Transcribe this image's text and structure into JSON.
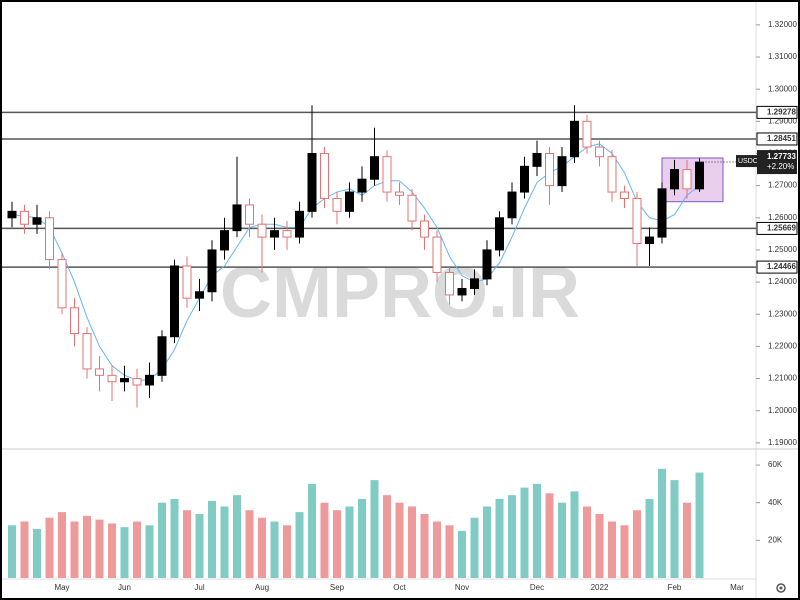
{
  "chart_data": {
    "type": "candlestick",
    "symbol": "USDCAD",
    "watermark": "CMPRO.IR",
    "categories": [
      null,
      null,
      null,
      null,
      "May",
      null,
      null,
      null,
      null,
      "Jun",
      null,
      null,
      null,
      null,
      null,
      "Jul",
      null,
      null,
      null,
      null,
      "Aug",
      null,
      null,
      null,
      null,
      null,
      "Sep",
      null,
      null,
      null,
      null,
      "Oct",
      null,
      null,
      null,
      null,
      "Nov",
      null,
      null,
      null,
      null,
      null,
      "Dec",
      null,
      null,
      null,
      null,
      "2022",
      null,
      null,
      null,
      null,
      null,
      "Feb",
      null,
      null,
      null,
      null,
      "Mar",
      null,
      null
    ],
    "open": [
      1.26,
      1.262,
      1.258,
      1.26,
      1.247,
      1.232,
      1.224,
      1.213,
      1.211,
      1.209,
      1.21,
      1.208,
      1.211,
      1.223,
      1.245,
      1.235,
      1.237,
      1.25,
      1.256,
      1.264,
      1.258,
      1.254,
      1.256,
      1.254,
      1.262,
      1.28,
      1.266,
      1.262,
      1.268,
      1.272,
      1.279,
      1.268,
      1.267,
      1.259,
      1.254,
      1.243,
      1.236,
      1.238,
      1.241,
      1.25,
      1.26,
      1.268,
      1.276,
      1.28,
      1.27,
      1.279,
      1.29,
      1.282,
      1.279,
      1.268,
      1.266,
      1.252,
      1.254,
      1.269,
      1.275,
      1.269,
      null,
      null,
      null,
      null,
      null
    ],
    "high": [
      1.265,
      1.264,
      1.264,
      1.262,
      1.249,
      1.235,
      1.226,
      1.217,
      1.214,
      1.214,
      1.213,
      1.215,
      1.225,
      1.247,
      1.248,
      1.241,
      1.253,
      1.26,
      1.279,
      1.266,
      1.261,
      1.26,
      1.259,
      1.265,
      1.295,
      1.282,
      1.268,
      1.271,
      1.276,
      1.288,
      1.281,
      1.271,
      1.269,
      1.261,
      1.256,
      1.245,
      1.241,
      1.244,
      1.253,
      1.262,
      1.271,
      1.279,
      1.284,
      1.282,
      1.282,
      1.295,
      1.292,
      1.284,
      1.281,
      1.27,
      1.268,
      1.257,
      1.271,
      1.278,
      1.278,
      1.2785,
      null,
      null,
      null,
      null,
      null
    ],
    "low": [
      1.257,
      1.255,
      1.255,
      1.244,
      1.23,
      1.22,
      1.21,
      1.206,
      1.203,
      1.206,
      1.201,
      1.204,
      1.209,
      1.221,
      1.232,
      1.231,
      1.234,
      1.247,
      1.254,
      1.254,
      1.243,
      1.25,
      1.25,
      1.252,
      1.26,
      1.263,
      1.258,
      1.26,
      1.265,
      1.27,
      1.265,
      1.264,
      1.256,
      1.25,
      1.24,
      1.233,
      1.234,
      1.236,
      1.239,
      1.248,
      1.258,
      1.266,
      1.273,
      1.264,
      1.268,
      1.277,
      1.28,
      1.276,
      1.265,
      1.263,
      1.245,
      1.245,
      1.252,
      1.267,
      1.266,
      1.268,
      null,
      null,
      null,
      null,
      null
    ],
    "close": [
      1.262,
      1.258,
      1.26,
      1.247,
      1.232,
      1.224,
      1.213,
      1.211,
      1.209,
      1.21,
      1.208,
      1.211,
      1.223,
      1.245,
      1.235,
      1.237,
      1.25,
      1.256,
      1.264,
      1.258,
      1.254,
      1.256,
      1.254,
      1.262,
      1.28,
      1.266,
      1.262,
      1.268,
      1.272,
      1.279,
      1.268,
      1.267,
      1.259,
      1.254,
      1.243,
      1.236,
      1.238,
      1.241,
      1.25,
      1.26,
      1.268,
      1.276,
      1.28,
      1.27,
      1.279,
      1.29,
      1.282,
      1.279,
      1.268,
      1.266,
      1.252,
      1.254,
      1.269,
      1.275,
      1.269,
      1.2773,
      null,
      null,
      null,
      null,
      null
    ],
    "ma": [
      1.261,
      1.2605,
      1.26,
      1.257,
      1.249,
      1.24,
      1.229,
      1.22,
      1.214,
      1.211,
      1.2095,
      1.2095,
      1.213,
      1.219,
      1.228,
      1.235,
      1.242,
      1.245,
      1.251,
      1.257,
      1.258,
      1.258,
      1.257,
      1.257,
      1.263,
      1.266,
      1.268,
      1.269,
      1.267,
      1.27,
      1.2715,
      1.2715,
      1.268,
      1.263,
      1.257,
      1.248,
      1.242,
      1.24,
      1.241,
      1.246,
      1.254,
      1.263,
      1.271,
      1.274,
      1.276,
      1.279,
      1.282,
      1.283,
      1.28,
      1.274,
      1.265,
      1.26,
      1.259,
      1.261,
      1.267,
      1.27,
      null,
      null,
      null,
      null,
      null
    ],
    "volume": [
      28000,
      30000,
      26000,
      32000,
      35000,
      30000,
      33000,
      31000,
      29000,
      27000,
      30000,
      28000,
      40000,
      42000,
      36000,
      34000,
      41000,
      38000,
      44000,
      36000,
      32000,
      30000,
      28000,
      35000,
      50000,
      40000,
      36000,
      38000,
      42000,
      52000,
      44000,
      40000,
      38000,
      34000,
      30000,
      28000,
      25000,
      32000,
      38000,
      42000,
      44000,
      48000,
      50000,
      45000,
      40000,
      46000,
      38000,
      34000,
      30000,
      28000,
      36000,
      42000,
      58000,
      52000,
      40000,
      56000,
      null,
      null,
      null,
      null,
      null
    ],
    "colors": {
      "up": "#000000",
      "down_stroke": "#e57373",
      "down_fill": "#ffffff",
      "vol_up": "#80cbc4",
      "vol_down": "#ef9a9a",
      "ma": "#64b5f6",
      "level": "#555555"
    },
    "ylim": [
      1.1884,
      1.3268
    ],
    "yticks": [
      {
        "value": 1.19,
        "label": "1.19000"
      },
      {
        "value": 1.2,
        "label": "1.20000"
      },
      {
        "value": 1.21,
        "label": "1.21000"
      },
      {
        "value": 1.22,
        "label": "1.22000"
      },
      {
        "value": 1.23,
        "label": "1.23000"
      },
      {
        "value": 1.24,
        "label": "1.24000"
      },
      {
        "value": 1.25,
        "label": "1.25000"
      },
      {
        "value": 1.26,
        "label": "1.26000"
      },
      {
        "value": 1.27,
        "label": "1.27000"
      },
      {
        "value": 1.28,
        "label": "1.28000"
      },
      {
        "value": 1.29,
        "label": "1.29000"
      },
      {
        "value": 1.3,
        "label": "1.30000"
      },
      {
        "value": 1.31,
        "label": "1.31000"
      },
      {
        "value": 1.32,
        "label": "1.32000"
      }
    ],
    "vlim": [
      0,
      68000
    ],
    "vticks": [
      {
        "value": 20000,
        "label": "20K"
      },
      {
        "value": 40000,
        "label": "40K"
      },
      {
        "value": 60000,
        "label": "60K"
      }
    ],
    "levels": [
      1.29278,
      1.28451,
      1.25669,
      1.24466
    ],
    "last_price": 1.27733,
    "change": "+2.20%",
    "box": {
      "top": 1.2786,
      "bottom": 1.265,
      "color": "#ce93d8"
    }
  }
}
